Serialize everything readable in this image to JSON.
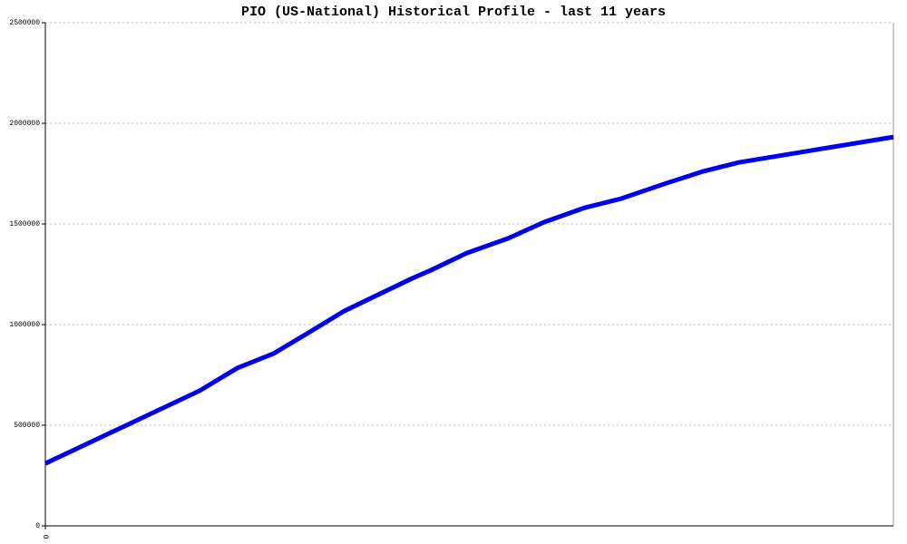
{
  "chart_data": {
    "type": "line",
    "title": "PIO (US-National) Historical Profile - last 11 years",
    "x": [
      0,
      2.0,
      2.49,
      2.96,
      3.41,
      3.88,
      4.76,
      5.0,
      5.47,
      6.0,
      6.47,
      7.0,
      7.47,
      8.06,
      8.53,
      9.0,
      11
    ],
    "series": [
      {
        "color": "#0000ee",
        "values": [
          310000,
          671000,
          784000,
          856000,
          959000,
          1068000,
          1230000,
          1270000,
          1356000,
          1428000,
          1509000,
          1581000,
          1626000,
          1703000,
          1761000,
          1806000,
          1932000
        ]
      }
    ],
    "xlim": [
      0,
      11
    ],
    "xticks": [
      0
    ],
    "ylim": [
      0,
      2500000
    ],
    "yticks": [
      0,
      500000,
      1000000,
      1500000,
      2000000,
      2500000
    ],
    "grid": true
  }
}
